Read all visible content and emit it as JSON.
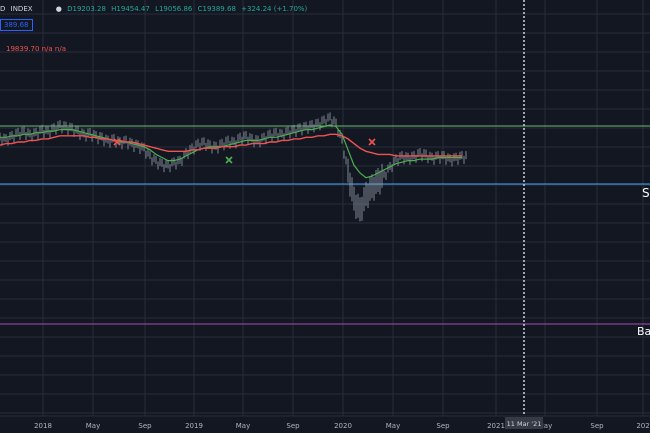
{
  "header": {
    "symbol_suffix": "D",
    "index_label": "INDEX",
    "open": "D19203.28",
    "high": "H19454.47",
    "low": "L19056.86",
    "close": "C19389.68",
    "change": "+324.24 (+1.70%)",
    "price_badge": "389.68",
    "ma_line": "19839.70  n/a  n/a"
  },
  "colors": {
    "background": "#131722",
    "grid": "#2a2e39",
    "candles": "#9aa3ae",
    "ma_fast": "#4caf50",
    "ma_slow": "#ef5350",
    "support_line": "#42a5f5",
    "resistance_line": "#66bb6a",
    "purple_line": "#ab47bc",
    "header_green": "#26a69a",
    "header_red": "#ef5350",
    "crosshair": "#d1d4dc",
    "badge_blue": "#2962ff"
  },
  "chart_data": {
    "type": "line",
    "x_ticks": [
      "2018",
      "May",
      "Sep",
      "2019",
      "May",
      "Sep",
      "2020",
      "May",
      "Sep",
      "2021",
      "May",
      "Sep",
      "202"
    ],
    "crosshair_label": "11 Mar '21",
    "series": [
      {
        "values": [
          62,
          61,
          63,
          65,
          66,
          64,
          65,
          67,
          66,
          68,
          70,
          69,
          68,
          66,
          64,
          65,
          63,
          62,
          60,
          61,
          59,
          60,
          58,
          57,
          55,
          50,
          47,
          45,
          44,
          46,
          47,
          52,
          55,
          58,
          59,
          57,
          56,
          58,
          60,
          59,
          62,
          63,
          61,
          60,
          62,
          64,
          65,
          64,
          66,
          67,
          68,
          69,
          70,
          71,
          73,
          75,
          71,
          60,
          40,
          22,
          15,
          25,
          30,
          34,
          38,
          43,
          48,
          50,
          49,
          50,
          52,
          51,
          49,
          50,
          50,
          48,
          49,
          50
        ]
      },
      {
        "values": [
          63,
          63,
          64,
          64,
          65,
          65,
          66,
          66,
          67,
          67,
          68,
          68,
          68,
          67,
          66,
          65,
          64,
          63,
          62,
          61,
          60,
          60,
          59,
          58,
          57,
          55,
          52,
          50,
          48,
          48,
          49,
          51,
          53,
          55,
          56,
          57,
          57,
          57,
          58,
          59,
          60,
          61,
          61,
          61,
          62,
          63,
          63,
          64,
          65,
          66,
          67,
          68,
          68,
          69,
          70,
          71,
          70,
          65,
          55,
          45,
          40,
          37,
          38,
          40,
          42,
          44,
          46,
          47,
          48,
          48,
          49,
          49,
          49,
          50,
          50,
          50,
          50,
          50
        ]
      },
      {
        "values": [
          58,
          59,
          59,
          60,
          60,
          61,
          61,
          62,
          62,
          63,
          64,
          64,
          64,
          64,
          64,
          63,
          63,
          62,
          62,
          61,
          61,
          60,
          60,
          59,
          58,
          57,
          56,
          55,
          54,
          54,
          54,
          54,
          55,
          55,
          56,
          56,
          56,
          57,
          57,
          57,
          58,
          58,
          59,
          59,
          59,
          60,
          60,
          61,
          61,
          62,
          62,
          63,
          63,
          64,
          64,
          65,
          65,
          64,
          62,
          59,
          56,
          54,
          53,
          52,
          52,
          52,
          51,
          51,
          51,
          51,
          51,
          51,
          51,
          51,
          51,
          51,
          51,
          51
        ]
      }
    ]
  },
  "right_labels": {
    "s_label": "S",
    "ba_label": "Ba"
  }
}
